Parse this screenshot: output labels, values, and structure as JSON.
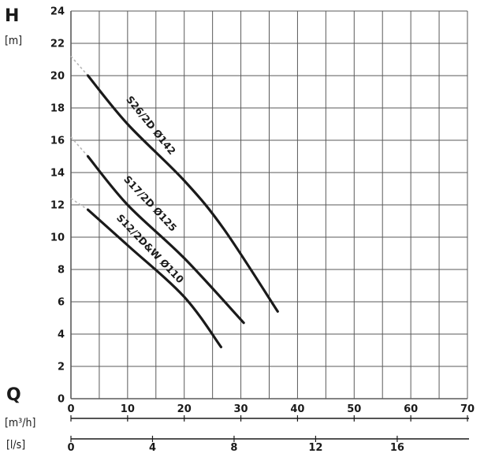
{
  "chart_data": {
    "type": "line",
    "y_axis_letter": "H",
    "y_unit": "[m]",
    "x_axis_letter": "Q",
    "x_unit_primary": "[m³/h]",
    "x_unit_secondary": "[l/s]",
    "ylim": [
      0,
      24
    ],
    "xlim": [
      0,
      70
    ],
    "y_ticks": [
      "0",
      "2",
      "4",
      "6",
      "8",
      "10",
      "12",
      "14",
      "16",
      "18",
      "20",
      "22",
      "24"
    ],
    "x_ticks_m3h": [
      "0",
      "10",
      "20",
      "30",
      "40",
      "50",
      "60",
      "70"
    ],
    "x_ticks_ls": [
      "0",
      "4",
      "8",
      "12",
      "16"
    ],
    "x_ticks_ls_values_m3h": [
      0,
      14.4,
      28.8,
      43.2,
      57.6
    ],
    "grid": true,
    "line_color": "#1a1a1a",
    "grid_color": "#5a5a5a",
    "dashed_color": "#b8b8b8",
    "series": [
      {
        "name": "S26/2D Ø142",
        "x": [
          3,
          10,
          20,
          27,
          36.5
        ],
        "y": [
          20,
          17,
          13.5,
          10.5,
          5.4
        ],
        "extrap_x": [
          0,
          3
        ],
        "extrap_y": [
          21.2,
          20
        ]
      },
      {
        "name": "S17/2D Ø125",
        "x": [
          3,
          10,
          20,
          30.5
        ],
        "y": [
          15,
          12,
          8.7,
          4.7
        ],
        "extrap_x": [
          0,
          3
        ],
        "extrap_y": [
          16.2,
          15
        ]
      },
      {
        "name": "S12/2D&W Ø110",
        "x": [
          3,
          10,
          20,
          26.5
        ],
        "y": [
          11.7,
          9.5,
          6.3,
          3.2
        ],
        "extrap_x": [
          0,
          3
        ],
        "extrap_y": [
          12.4,
          11.7
        ]
      }
    ]
  }
}
